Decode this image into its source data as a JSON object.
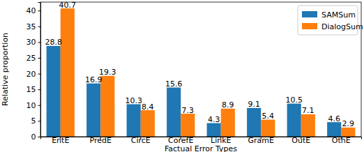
{
  "chart_data": {
    "type": "bar",
    "x_label": "Factual Error Types",
    "y_label": "Relative proportion",
    "categories": [
      "EntE",
      "PredE",
      "CircE",
      "CorefE",
      "LinkE",
      "GramE",
      "OutE",
      "OthE"
    ],
    "series": [
      {
        "name": "SAMSum",
        "color": "#1f77b4",
        "values": [
          28.8,
          16.9,
          10.3,
          15.6,
          4.3,
          9.1,
          10.5,
          4.6
        ]
      },
      {
        "name": "DialogSum",
        "color": "#ff7f0e",
        "values": [
          40.7,
          19.3,
          8.4,
          7.3,
          8.9,
          5.4,
          7.1,
          2.9
        ]
      }
    ],
    "ylim": [
      0,
      42.7
    ],
    "yticks": [
      0,
      5,
      10,
      15,
      20,
      25,
      30,
      35,
      40
    ],
    "grid": false,
    "legend": "upper right",
    "data_labels": true
  }
}
